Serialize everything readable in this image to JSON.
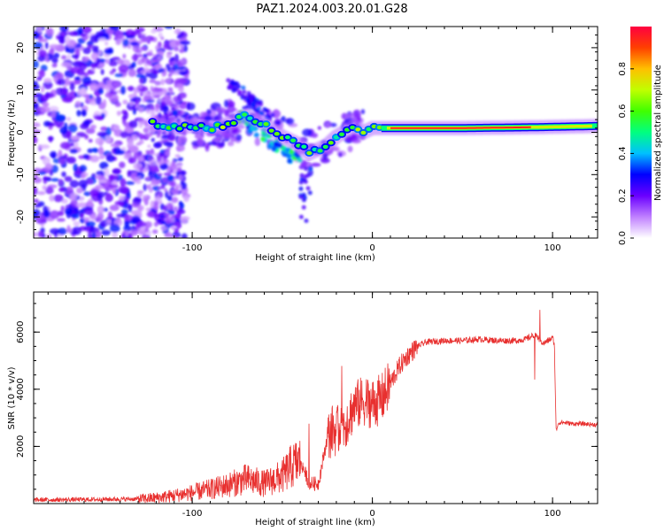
{
  "title": "PAZ1.2024.003.20.01.G28",
  "chart_data": [
    {
      "type": "heatmap",
      "xlabel": "Height of straight line (km)",
      "ylabel": "Frequency (Hz)",
      "xlim": [
        -188,
        125
      ],
      "ylim": [
        -25,
        25
      ],
      "x_ticks": [
        -100,
        0,
        100
      ],
      "y_ticks": [
        -20,
        -10,
        0,
        10,
        20
      ],
      "colorbar": {
        "label": "Normalized spectral amplitude",
        "range": [
          0,
          1
        ],
        "ticks": [
          0.0,
          0.2,
          0.4,
          0.6,
          0.8
        ],
        "colors": [
          "#ffffff",
          "#c080ff",
          "#6a00ff",
          "#0000ff",
          "#00c0ff",
          "#00ff80",
          "#40ff00",
          "#c0ff00",
          "#ffc000",
          "#ff4000",
          "#ff0040"
        ]
      },
      "ridge": [
        {
          "x": -120,
          "y": 2
        },
        {
          "x": -110,
          "y": 1
        },
        {
          "x": -100,
          "y": 1.5
        },
        {
          "x": -90,
          "y": 1
        },
        {
          "x": -80,
          "y": 2
        },
        {
          "x": -70,
          "y": 4
        },
        {
          "x": -60,
          "y": 2
        },
        {
          "x": -50,
          "y": -1
        },
        {
          "x": -40,
          "y": -3
        },
        {
          "x": -35,
          "y": -5
        },
        {
          "x": -25,
          "y": -3
        },
        {
          "x": -20,
          "y": -1
        },
        {
          "x": -10,
          "y": 1.5
        },
        {
          "x": -5,
          "y": 0
        },
        {
          "x": 0,
          "y": 1
        },
        {
          "x": 10,
          "y": 1
        },
        {
          "x": 50,
          "y": 1
        },
        {
          "x": 90,
          "y": 1.2
        },
        {
          "x": 125,
          "y": 1.5
        }
      ]
    },
    {
      "type": "line",
      "xlabel": "Height of straight line (km)",
      "ylabel": "SNR (10 * v/v)",
      "xlim": [
        -188,
        125
      ],
      "ylim": [
        0,
        7400
      ],
      "x_ticks": [
        -100,
        0,
        100
      ],
      "y_ticks": [
        2000,
        4000,
        6000
      ],
      "series": [
        {
          "color": "#e8302f",
          "x": [
            -188,
            -160,
            -130,
            -120,
            -110,
            -100,
            -90,
            -80,
            -70,
            -60,
            -50,
            -45,
            -40,
            -35,
            -30,
            -25,
            -22,
            -20,
            -15,
            -10,
            -5,
            0,
            5,
            10,
            15,
            20,
            25,
            30,
            40,
            50,
            60,
            70,
            80,
            85,
            90,
            95,
            100,
            101,
            102,
            103,
            105,
            110,
            120,
            125
          ],
          "values": [
            130,
            140,
            160,
            200,
            280,
            380,
            500,
            650,
            850,
            700,
            950,
            1300,
            1500,
            700,
            700,
            2300,
            2600,
            2500,
            2800,
            3400,
            3600,
            3500,
            3650,
            4200,
            4800,
            5200,
            5500,
            5650,
            5700,
            5700,
            5750,
            5700,
            5700,
            5750,
            5900,
            5600,
            5800,
            5600,
            2500,
            2800,
            2850,
            2800,
            2780,
            2750
          ]
        }
      ]
    }
  ]
}
